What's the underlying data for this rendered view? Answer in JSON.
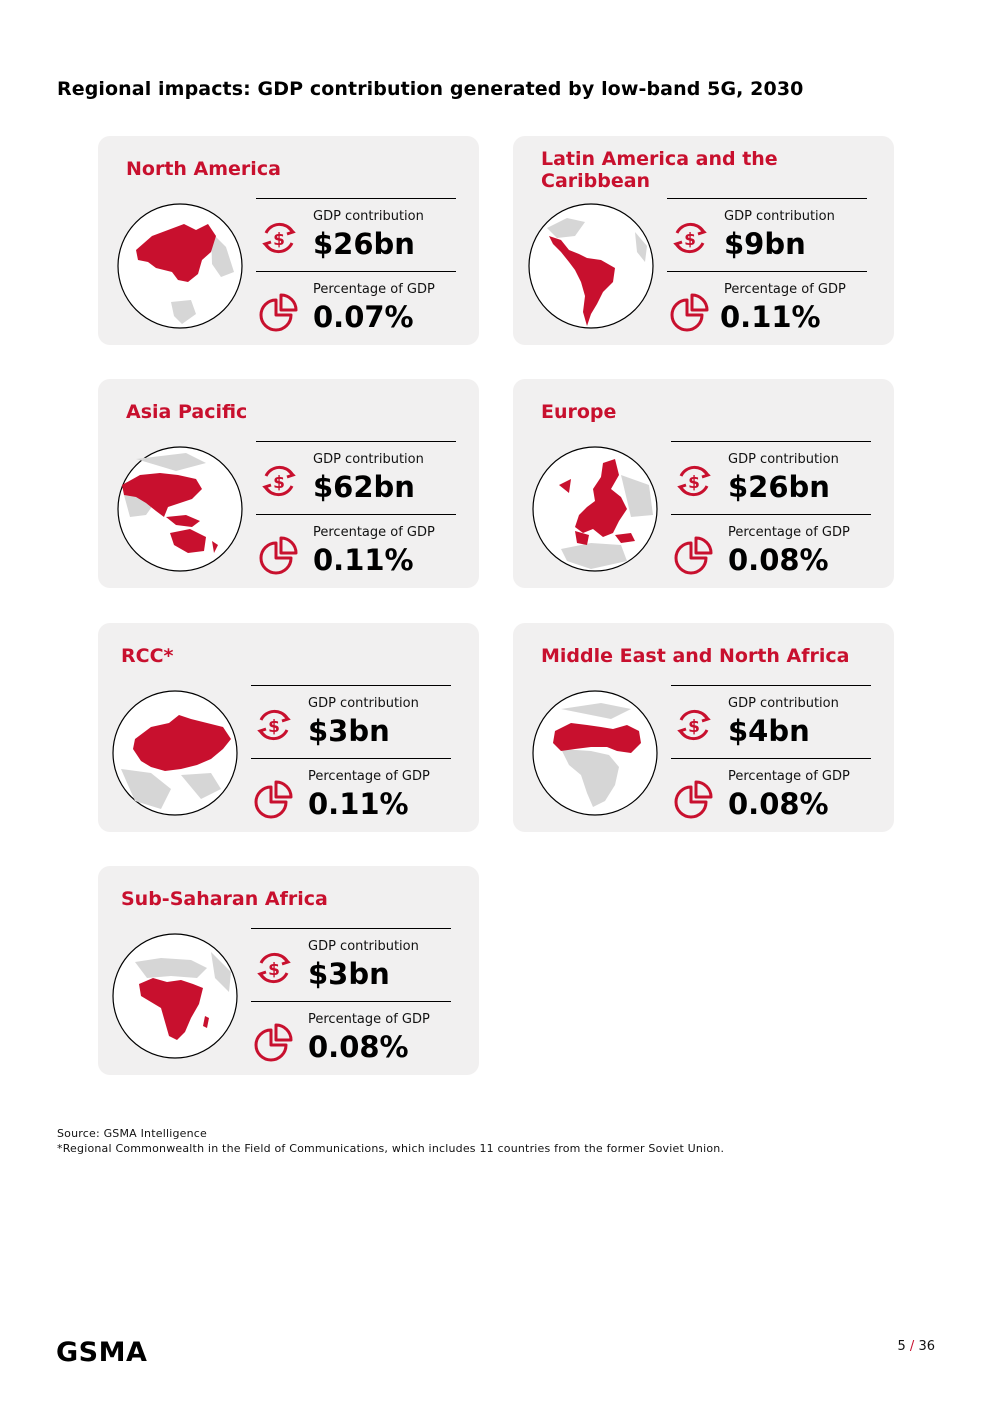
{
  "title": "Regional impacts: GDP contribution generated by low-band 5G, 2030",
  "cards": [
    {
      "region": "North America",
      "gdp_label": "GDP contribution",
      "gdp_value": "$26bn",
      "pct_label": "Percentage of GDP",
      "pct_value": "0.07%"
    },
    {
      "region": "Latin America and the Caribbean",
      "gdp_label": "GDP contribution",
      "gdp_value": "$9bn",
      "pct_label": "Percentage of GDP",
      "pct_value": "0.11%"
    },
    {
      "region": "Asia Pacific",
      "gdp_label": "GDP contribution",
      "gdp_value": "$62bn",
      "pct_label": "Percentage of GDP",
      "pct_value": "0.11%"
    },
    {
      "region": "Europe",
      "gdp_label": "GDP contribution",
      "gdp_value": "$26bn",
      "pct_label": "Percentage of GDP",
      "pct_value": "0.08%"
    },
    {
      "region": "RCC*",
      "gdp_label": "GDP contribution",
      "gdp_value": "$3bn",
      "pct_label": "Percentage of GDP",
      "pct_value": "0.11%"
    },
    {
      "region": "Middle East and North Africa",
      "gdp_label": "GDP contribution",
      "gdp_value": "$4bn",
      "pct_label": "Percentage of GDP",
      "pct_value": "0.08%"
    },
    {
      "region": "Sub-Saharan Africa",
      "gdp_label": "GDP contribution",
      "gdp_value": "$3bn",
      "pct_label": "Percentage of GDP",
      "pct_value": "0.08%"
    }
  ],
  "source": "Source: GSMA Intelligence",
  "note": "*Regional Commonwealth in the Field of Communications, which includes 11 countries from the former Soviet Union.",
  "logo": "GSMA",
  "page": {
    "current": "5",
    "separator": "/",
    "total": "36"
  },
  "colors": {
    "accent": "#c8102e",
    "card_bg": "#f1f0f0",
    "land": "#d6d6d6"
  },
  "icons": {
    "gdp": "dollar-cycle-icon",
    "pct": "pie-chart-icon"
  }
}
